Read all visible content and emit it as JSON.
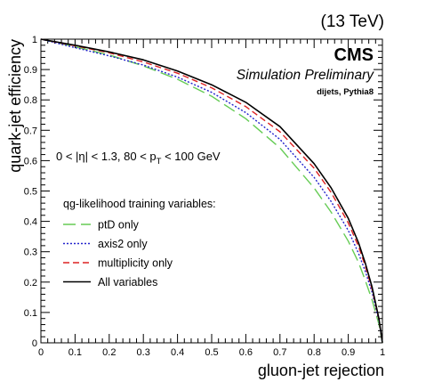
{
  "chart_data": {
    "type": "line",
    "energy": "(13 TeV)",
    "experiment": "CMS",
    "status": "Simulation Preliminary",
    "sample": "dijets, Pythia8",
    "selection": {
      "part1": "0 < |η| < 1.3, 80 < p",
      "sub": "T",
      "part2": " < 100 GeV"
    },
    "xlabel": "gluon-jet rejection",
    "ylabel": "quark-jet efficiency",
    "xlim": [
      0,
      1
    ],
    "ylim": [
      0,
      1
    ],
    "x_ticks": [
      "0",
      "0.1",
      "0.2",
      "0.3",
      "0.4",
      "0.5",
      "0.6",
      "0.7",
      "0.8",
      "0.9",
      "1"
    ],
    "y_ticks": [
      "0",
      "0.1",
      "0.2",
      "0.3",
      "0.4",
      "0.5",
      "0.6",
      "0.7",
      "0.8",
      "0.9",
      "1"
    ],
    "legend_title": "qg-likelihood training variables:",
    "legend_placement": "middle-left",
    "grid": false,
    "series": [
      {
        "name": "ptD only",
        "color": "#66cc55",
        "style": "long-dash",
        "x": [
          0.0,
          0.1,
          0.2,
          0.3,
          0.4,
          0.5,
          0.6,
          0.7,
          0.8,
          0.85,
          0.9,
          0.93,
          0.95,
          0.97,
          0.99,
          1.0
        ],
        "y": [
          1.0,
          0.975,
          0.948,
          0.912,
          0.868,
          0.812,
          0.738,
          0.642,
          0.51,
          0.43,
          0.335,
          0.265,
          0.205,
          0.14,
          0.06,
          0.0
        ]
      },
      {
        "name": "axis2 only",
        "color": "#2222cc",
        "style": "dotted",
        "x": [
          0.0,
          0.1,
          0.2,
          0.3,
          0.4,
          0.5,
          0.6,
          0.7,
          0.8,
          0.85,
          0.9,
          0.93,
          0.95,
          0.97,
          0.99,
          1.0
        ],
        "y": [
          1.0,
          0.972,
          0.945,
          0.915,
          0.875,
          0.825,
          0.758,
          0.67,
          0.545,
          0.465,
          0.37,
          0.295,
          0.235,
          0.165,
          0.07,
          0.0
        ]
      },
      {
        "name": "multiplicity only",
        "color": "#dd2222",
        "style": "dashed",
        "x": [
          0.0,
          0.1,
          0.2,
          0.3,
          0.4,
          0.5,
          0.6,
          0.7,
          0.8,
          0.85,
          0.9,
          0.93,
          0.95,
          0.97,
          0.99,
          1.0
        ],
        "y": [
          1.0,
          0.978,
          0.955,
          0.925,
          0.888,
          0.84,
          0.778,
          0.695,
          0.575,
          0.495,
          0.395,
          0.318,
          0.252,
          0.175,
          0.075,
          0.0
        ]
      },
      {
        "name": "All variables",
        "color": "#000000",
        "style": "solid",
        "x": [
          0.0,
          0.1,
          0.2,
          0.3,
          0.4,
          0.5,
          0.6,
          0.7,
          0.8,
          0.85,
          0.9,
          0.93,
          0.95,
          0.97,
          0.99,
          1.0
        ],
        "y": [
          1.0,
          0.98,
          0.958,
          0.932,
          0.895,
          0.85,
          0.792,
          0.712,
          0.59,
          0.51,
          0.41,
          0.33,
          0.262,
          0.182,
          0.078,
          0.0
        ]
      }
    ]
  }
}
